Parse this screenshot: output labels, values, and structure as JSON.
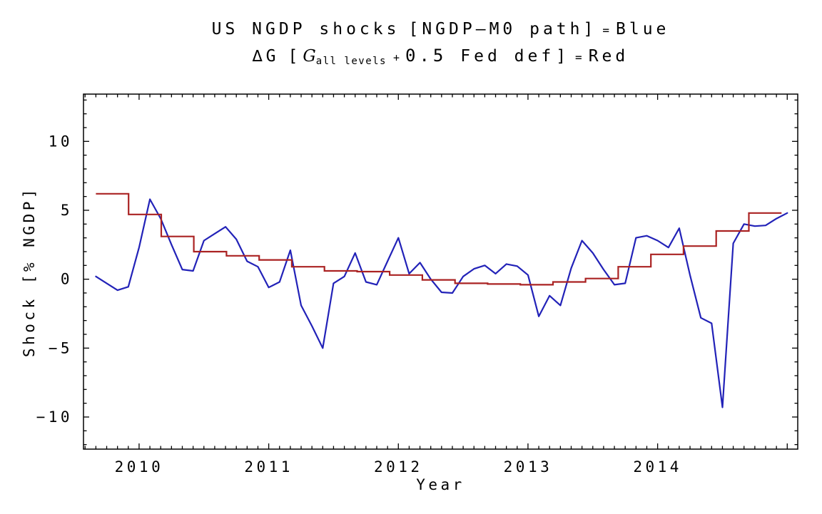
{
  "title": {
    "line1": {
      "text": "US NGDP shocks",
      "bracket": "[NGDP–M0 path]",
      "eq": "=",
      "series_label": "Blue"
    },
    "line2": {
      "delta_g": "∆G",
      "open_bracket": "[",
      "g_var": "G",
      "g_subscript": "all levels",
      "plus": "+",
      "coefficient": "0.5",
      "rest": "Fed def",
      "close_bracket": "]",
      "eq": "=",
      "series_label": "Red"
    }
  },
  "chart_data": {
    "type": "line",
    "title": "US NGDP shocks [NGDP–M0 path] = Blue ; ∆G [G all levels + 0.5 Fed def] = Red",
    "xlabel": "Year",
    "ylabel": "Shock [% NGDP]",
    "xlim": [
      2009.571,
      2015.081
    ],
    "ylim": [
      -12.33,
      13.43
    ],
    "grid": false,
    "frame": true,
    "x_major_ticks": [
      {
        "v": 2010,
        "label": "2010"
      },
      {
        "v": 2011,
        "label": "2011"
      },
      {
        "v": 2012,
        "label": "2012"
      },
      {
        "v": 2013,
        "label": "2013"
      },
      {
        "v": 2014,
        "label": "2014"
      }
    ],
    "x_minor_step": 0.0833333,
    "y_major_ticks": [
      {
        "v": 10,
        "label": "10"
      },
      {
        "v": 5,
        "label": "5"
      },
      {
        "v": 0,
        "label": "0"
      },
      {
        "v": -5,
        "label": "−5"
      },
      {
        "v": -10,
        "label": "−10"
      }
    ],
    "y_minor_step": 1,
    "series": [
      {
        "name": "US NGDP shocks (Blue, monthly)",
        "plot_type": "line",
        "color": "#2222b8",
        "x_start": 2009.6667,
        "x_step": 0.0833333,
        "values": [
          0.2,
          -0.3,
          -0.8,
          -0.55,
          2.3,
          5.8,
          4.4,
          2.5,
          0.7,
          0.6,
          2.8,
          3.3,
          3.8,
          2.9,
          1.3,
          0.9,
          -0.6,
          -0.2,
          2.1,
          -1.9,
          -3.4,
          -5.0,
          -0.3,
          0.2,
          1.9,
          -0.2,
          -0.4,
          1.3,
          3.0,
          0.4,
          1.2,
          0.0,
          -0.95,
          -1.0,
          0.2,
          0.75,
          1.0,
          0.4,
          1.1,
          0.95,
          0.3,
          -2.7,
          -1.2,
          -1.9,
          0.8,
          2.8,
          1.9,
          0.7,
          -0.4,
          -0.3,
          3.0,
          3.15,
          2.8,
          2.3,
          3.7,
          0.3,
          -2.8,
          -3.2,
          -9.3,
          2.6,
          4.0,
          3.85,
          3.9,
          4.4,
          4.8
        ]
      },
      {
        "name": "∆G = G all levels + 0.5 Fed def (Red, quarterly steps)",
        "plot_type": "step",
        "color": "#aa2222",
        "boundaries": [
          2009.667,
          2009.919,
          2010.171,
          2010.422,
          2010.674,
          2010.926,
          2011.178,
          2011.43,
          2011.682,
          2011.933,
          2012.185,
          2012.437,
          2012.689,
          2012.941,
          2013.193,
          2013.444,
          2013.696,
          2013.948,
          2014.2,
          2014.452,
          2014.704,
          2014.956
        ],
        "values": [
          6.2,
          4.7,
          3.1,
          2.0,
          1.7,
          1.4,
          0.9,
          0.6,
          0.55,
          0.3,
          -0.05,
          -0.3,
          -0.35,
          -0.4,
          -0.2,
          0.05,
          0.9,
          1.8,
          2.4,
          3.5,
          4.8
        ]
      }
    ]
  }
}
